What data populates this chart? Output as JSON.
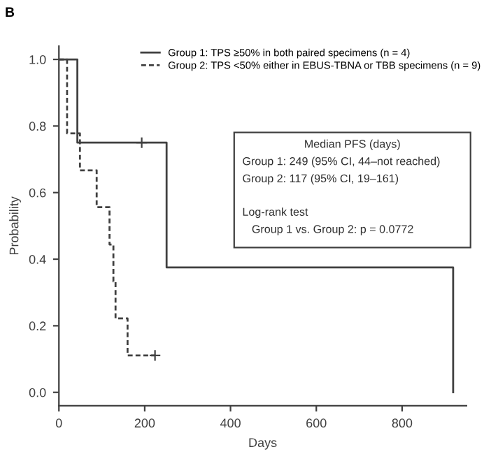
{
  "chart_data": {
    "type": "step",
    "title": "B",
    "xlabel": "Days",
    "ylabel": "Probability",
    "series": [
      {
        "name": "Group 1: TPS ≥50% in both paired specimens (n = 4)",
        "color": "#404040",
        "line_style": "solid",
        "x": [
          0,
          43,
          251,
          919
        ],
        "values": [
          1.0,
          0.75,
          0.375,
          0.0
        ]
      },
      {
        "name": "Group 2: TPS <50% either in EBUS-TBNA or TBB specimens (n = 9)",
        "color": "#404040",
        "line_style": "dashed",
        "x": [
          0,
          19,
          49,
          88,
          118,
          127,
          132,
          160,
          224
        ],
        "values": [
          1.0,
          0.778,
          0.667,
          0.556,
          0.444,
          0.333,
          0.222,
          0.111,
          0.111
        ]
      },
      {
        "type": "scatter",
        "marker": "cross",
        "color": "#404040",
        "x": [
          193,
          224
        ],
        "values": [
          0.75,
          0.111
        ]
      }
    ],
    "annotations": [
      "Median PFS (days)",
      "Group 1: 249 (95% CI, 44–not reached)",
      "Group 2: 117 (95% CI, 19–161)",
      "Log-rank test",
      "   Group 1 vs. Group 2: p = 0.0772"
    ],
    "xlim": [
      0,
      950
    ],
    "ylim": [
      -0.04,
      1.04
    ],
    "xticks": [
      0,
      200,
      400,
      600,
      800
    ],
    "yticks": [
      {
        "value": 0,
        "label": "0.0"
      },
      0.2,
      0.4,
      0.6,
      0.8,
      {
        "value": 1,
        "label": "1.0"
      }
    ],
    "grid": false,
    "legend": "top right"
  }
}
